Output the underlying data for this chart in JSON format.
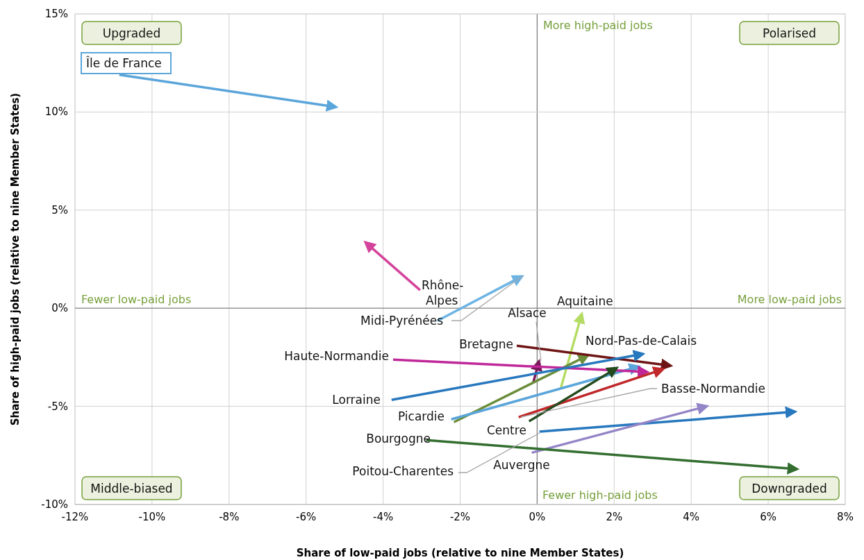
{
  "chart_data": {
    "type": "line",
    "xlabel": "Share of low-paid jobs (relative to nine Member States)",
    "ylabel": "Share of high-paid jobs (relative to nine Member States)",
    "xlim": [
      -12,
      8
    ],
    "ylim": [
      -10,
      15
    ],
    "xticks": [
      {
        "value": -12,
        "label": "-12%"
      },
      {
        "value": -10,
        "label": "-10%"
      },
      {
        "value": -8,
        "label": "-8%"
      },
      {
        "value": -6,
        "label": "-6%"
      },
      {
        "value": -4,
        "label": "-4%"
      },
      {
        "value": -2,
        "label": "-2%"
      },
      {
        "value": 0,
        "label": "0%"
      },
      {
        "value": 2,
        "label": "2%"
      },
      {
        "value": 4,
        "label": "4%"
      },
      {
        "value": 6,
        "label": "6%"
      },
      {
        "value": 8,
        "label": "8%"
      }
    ],
    "yticks": [
      {
        "value": -10,
        "label": "-10%"
      },
      {
        "value": -5,
        "label": "-5%"
      },
      {
        "value": 0,
        "label": "0%"
      },
      {
        "value": 5,
        "label": "5%"
      },
      {
        "value": 10,
        "label": "10%"
      },
      {
        "value": 15,
        "label": "15%"
      }
    ],
    "grid": true,
    "annotations": [
      "Upgraded",
      "Polarised",
      "Middle-biased",
      "Downgraded",
      "More high-paid jobs",
      "Fewer high-paid jobs",
      "Fewer low-paid jobs",
      "More low-paid jobs"
    ],
    "series": [
      {
        "name": "Île de France",
        "color": "#5aa5da",
        "x": [
          -10.85,
          -5.22
        ],
        "values": [
          11.9,
          10.25
        ]
      },
      {
        "name": "Rhône-Alpes",
        "color": "#d4439b",
        "x": [
          -3.04,
          -4.46
        ],
        "values": [
          0.92,
          3.36
        ]
      },
      {
        "name": "Midi-Pyrénées",
        "color": "#6cb4e4",
        "x": [
          -2.59,
          -0.39
        ],
        "values": [
          -0.64,
          1.63
        ]
      },
      {
        "name": "Alsace",
        "color": "#7a1a5a",
        "x": [
          -0.1,
          0.05
        ],
        "values": [
          -3.78,
          -2.69
        ]
      },
      {
        "name": "Aquitaine",
        "color": "#b4dc64",
        "x": [
          0.62,
          1.16
        ],
        "values": [
          -4.03,
          -0.28
        ]
      },
      {
        "name": "Nord-Pas-de-Calais",
        "color": "#6b8e3a",
        "x": [
          -2.16,
          1.32
        ],
        "values": [
          -5.8,
          -2.4
        ]
      },
      {
        "name": "Picardie",
        "color": "#5aa5da",
        "x": [
          -2.23,
          2.64
        ],
        "values": [
          -5.66,
          -2.97
        ]
      },
      {
        "name": "Bretagne",
        "color": "#6e1414",
        "x": [
          -0.53,
          3.47
        ],
        "values": [
          -1.91,
          -2.93
        ]
      },
      {
        "name": "Haute-Normandie",
        "color": "#c0289a",
        "x": [
          -3.74,
          2.86
        ],
        "values": [
          -2.62,
          -3.25
        ]
      },
      {
        "name": "Lorraine",
        "color": "#2878be",
        "x": [
          -3.78,
          2.75
        ],
        "values": [
          -4.67,
          -2.33
        ]
      },
      {
        "name": "Basse-Normandie",
        "color": "#c0282a",
        "x": [
          -0.48,
          3.27
        ],
        "values": [
          -5.55,
          -3.11
        ]
      },
      {
        "name": "Centre",
        "color": "#234a1e",
        "x": [
          -0.21,
          2.07
        ],
        "values": [
          -5.76,
          -3.04
        ]
      },
      {
        "name": "Poitou-Charentes",
        "color": "#2878be",
        "x": [
          0.06,
          6.7
        ],
        "values": [
          -6.29,
          -5.27
        ]
      },
      {
        "name": "Auvergne",
        "color": "#9485c8",
        "x": [
          -0.14,
          4.41
        ],
        "values": [
          -7.36,
          -4.99
        ]
      },
      {
        "name": "Bourgogne",
        "color": "#336e30",
        "x": [
          -2.88,
          6.75
        ],
        "values": [
          -6.72,
          -8.2
        ]
      }
    ]
  }
}
